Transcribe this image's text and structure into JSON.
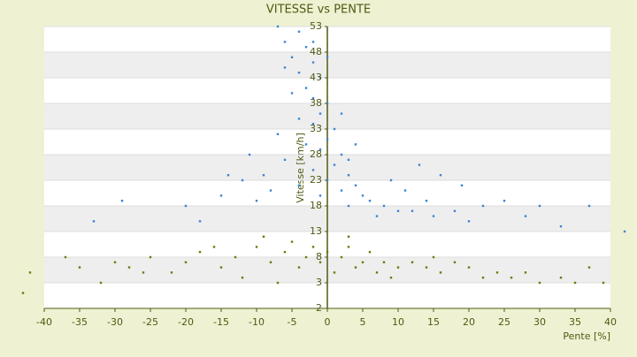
{
  "chart_data": {
    "type": "scatter",
    "title": "VITESSE vs PENTE",
    "x_label": "Pente [%]",
    "y_label": "Vitesse [km/h]",
    "xlim": [
      -40,
      40
    ],
    "xticks": [
      -40,
      -35,
      -30,
      -25,
      -20,
      -15,
      -10,
      -5,
      0,
      5,
      10,
      15,
      20,
      25,
      30,
      35,
      40
    ],
    "ylim": [
      -2,
      53
    ],
    "yticks": [
      -2,
      3,
      8,
      13,
      18,
      23,
      28,
      33,
      38,
      43,
      48,
      53
    ],
    "grid": true,
    "series": [
      {
        "color": "#3d85cf",
        "x": [
          -7,
          -6,
          -5,
          -4,
          -3,
          -2,
          -6,
          -4,
          -1,
          -3,
          -5,
          -2,
          0,
          -1,
          -4,
          -2,
          1,
          0,
          -3,
          -1,
          2,
          -6,
          1,
          -2,
          3,
          0,
          4,
          -4,
          2,
          5,
          -1,
          6,
          3,
          8,
          -8,
          10,
          7,
          12,
          -10,
          -12,
          15,
          14,
          18,
          -15,
          20,
          -20,
          22,
          25,
          -18,
          -29,
          -33,
          28,
          30,
          33,
          37,
          42,
          -11,
          -14,
          16,
          19,
          0,
          -2,
          2,
          4,
          3,
          -7,
          9,
          11,
          -9,
          13
        ],
        "values": [
          53,
          50,
          47,
          52,
          49,
          46,
          45,
          44,
          43,
          41,
          40,
          39,
          38,
          36,
          35,
          34,
          33,
          31,
          30,
          29,
          28,
          27,
          26,
          25,
          24,
          23,
          22,
          22,
          21,
          20,
          20,
          19,
          18,
          18,
          21,
          17,
          16,
          17,
          19,
          23,
          16,
          19,
          17,
          20,
          15,
          18,
          18,
          19,
          15,
          19,
          15,
          16,
          18,
          14,
          18,
          13,
          28,
          24,
          24,
          22,
          47,
          50,
          36,
          30,
          27,
          32,
          23,
          21,
          24,
          26
        ]
      },
      {
        "color": "#6b7a0c",
        "x": [
          -37,
          -35,
          -43,
          -42,
          -32,
          -30,
          -28,
          -25,
          -22,
          -20,
          -18,
          -15,
          -13,
          -10,
          -8,
          -6,
          -5,
          -4,
          -3,
          -2,
          -1,
          0,
          1,
          2,
          3,
          4,
          5,
          6,
          7,
          8,
          10,
          12,
          14,
          16,
          18,
          20,
          22,
          24,
          26,
          28,
          30,
          33,
          35,
          37,
          39,
          -12,
          -7,
          -26,
          9,
          -16,
          15,
          -9,
          3
        ],
        "values": [
          8,
          6,
          1,
          5,
          3,
          7,
          6,
          8,
          5,
          7,
          9,
          6,
          8,
          10,
          7,
          9,
          11,
          6,
          8,
          10,
          7,
          9,
          5,
          8,
          10,
          6,
          7,
          9,
          5,
          7,
          6,
          7,
          6,
          5,
          7,
          6,
          4,
          5,
          4,
          5,
          3,
          4,
          3,
          6,
          3,
          4,
          3,
          5,
          4,
          10,
          8,
          12,
          12
        ]
      }
    ]
  }
}
